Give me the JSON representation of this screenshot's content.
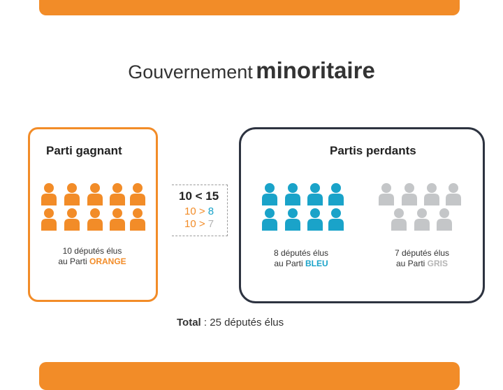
{
  "title": {
    "regular": "Gouvernement",
    "bold": "minoritaire"
  },
  "winner": {
    "label": "Parti gagnant",
    "count": 10,
    "color": "#f28c28",
    "caption_line1": "10 députés élus",
    "caption_prefix": "au Parti",
    "party": "ORANGE"
  },
  "losers": {
    "label": "Partis perdants"
  },
  "blue": {
    "count": 8,
    "color": "#1aa3c9",
    "caption_line1": "8 députés élus",
    "caption_prefix": "au Parti",
    "party": "BLEU"
  },
  "grey": {
    "count": 7,
    "color": "#c4c6c8",
    "caption_line1": "7 députés élus",
    "caption_prefix": "au Parti",
    "party": "GRIS"
  },
  "comparison": {
    "main": "10 < 15",
    "line2_left": "10 >",
    "line2_right": "8",
    "line3_left": "10 >",
    "line3_right": "7"
  },
  "total": {
    "label": "Total",
    "text": ": 25 députés élus"
  }
}
